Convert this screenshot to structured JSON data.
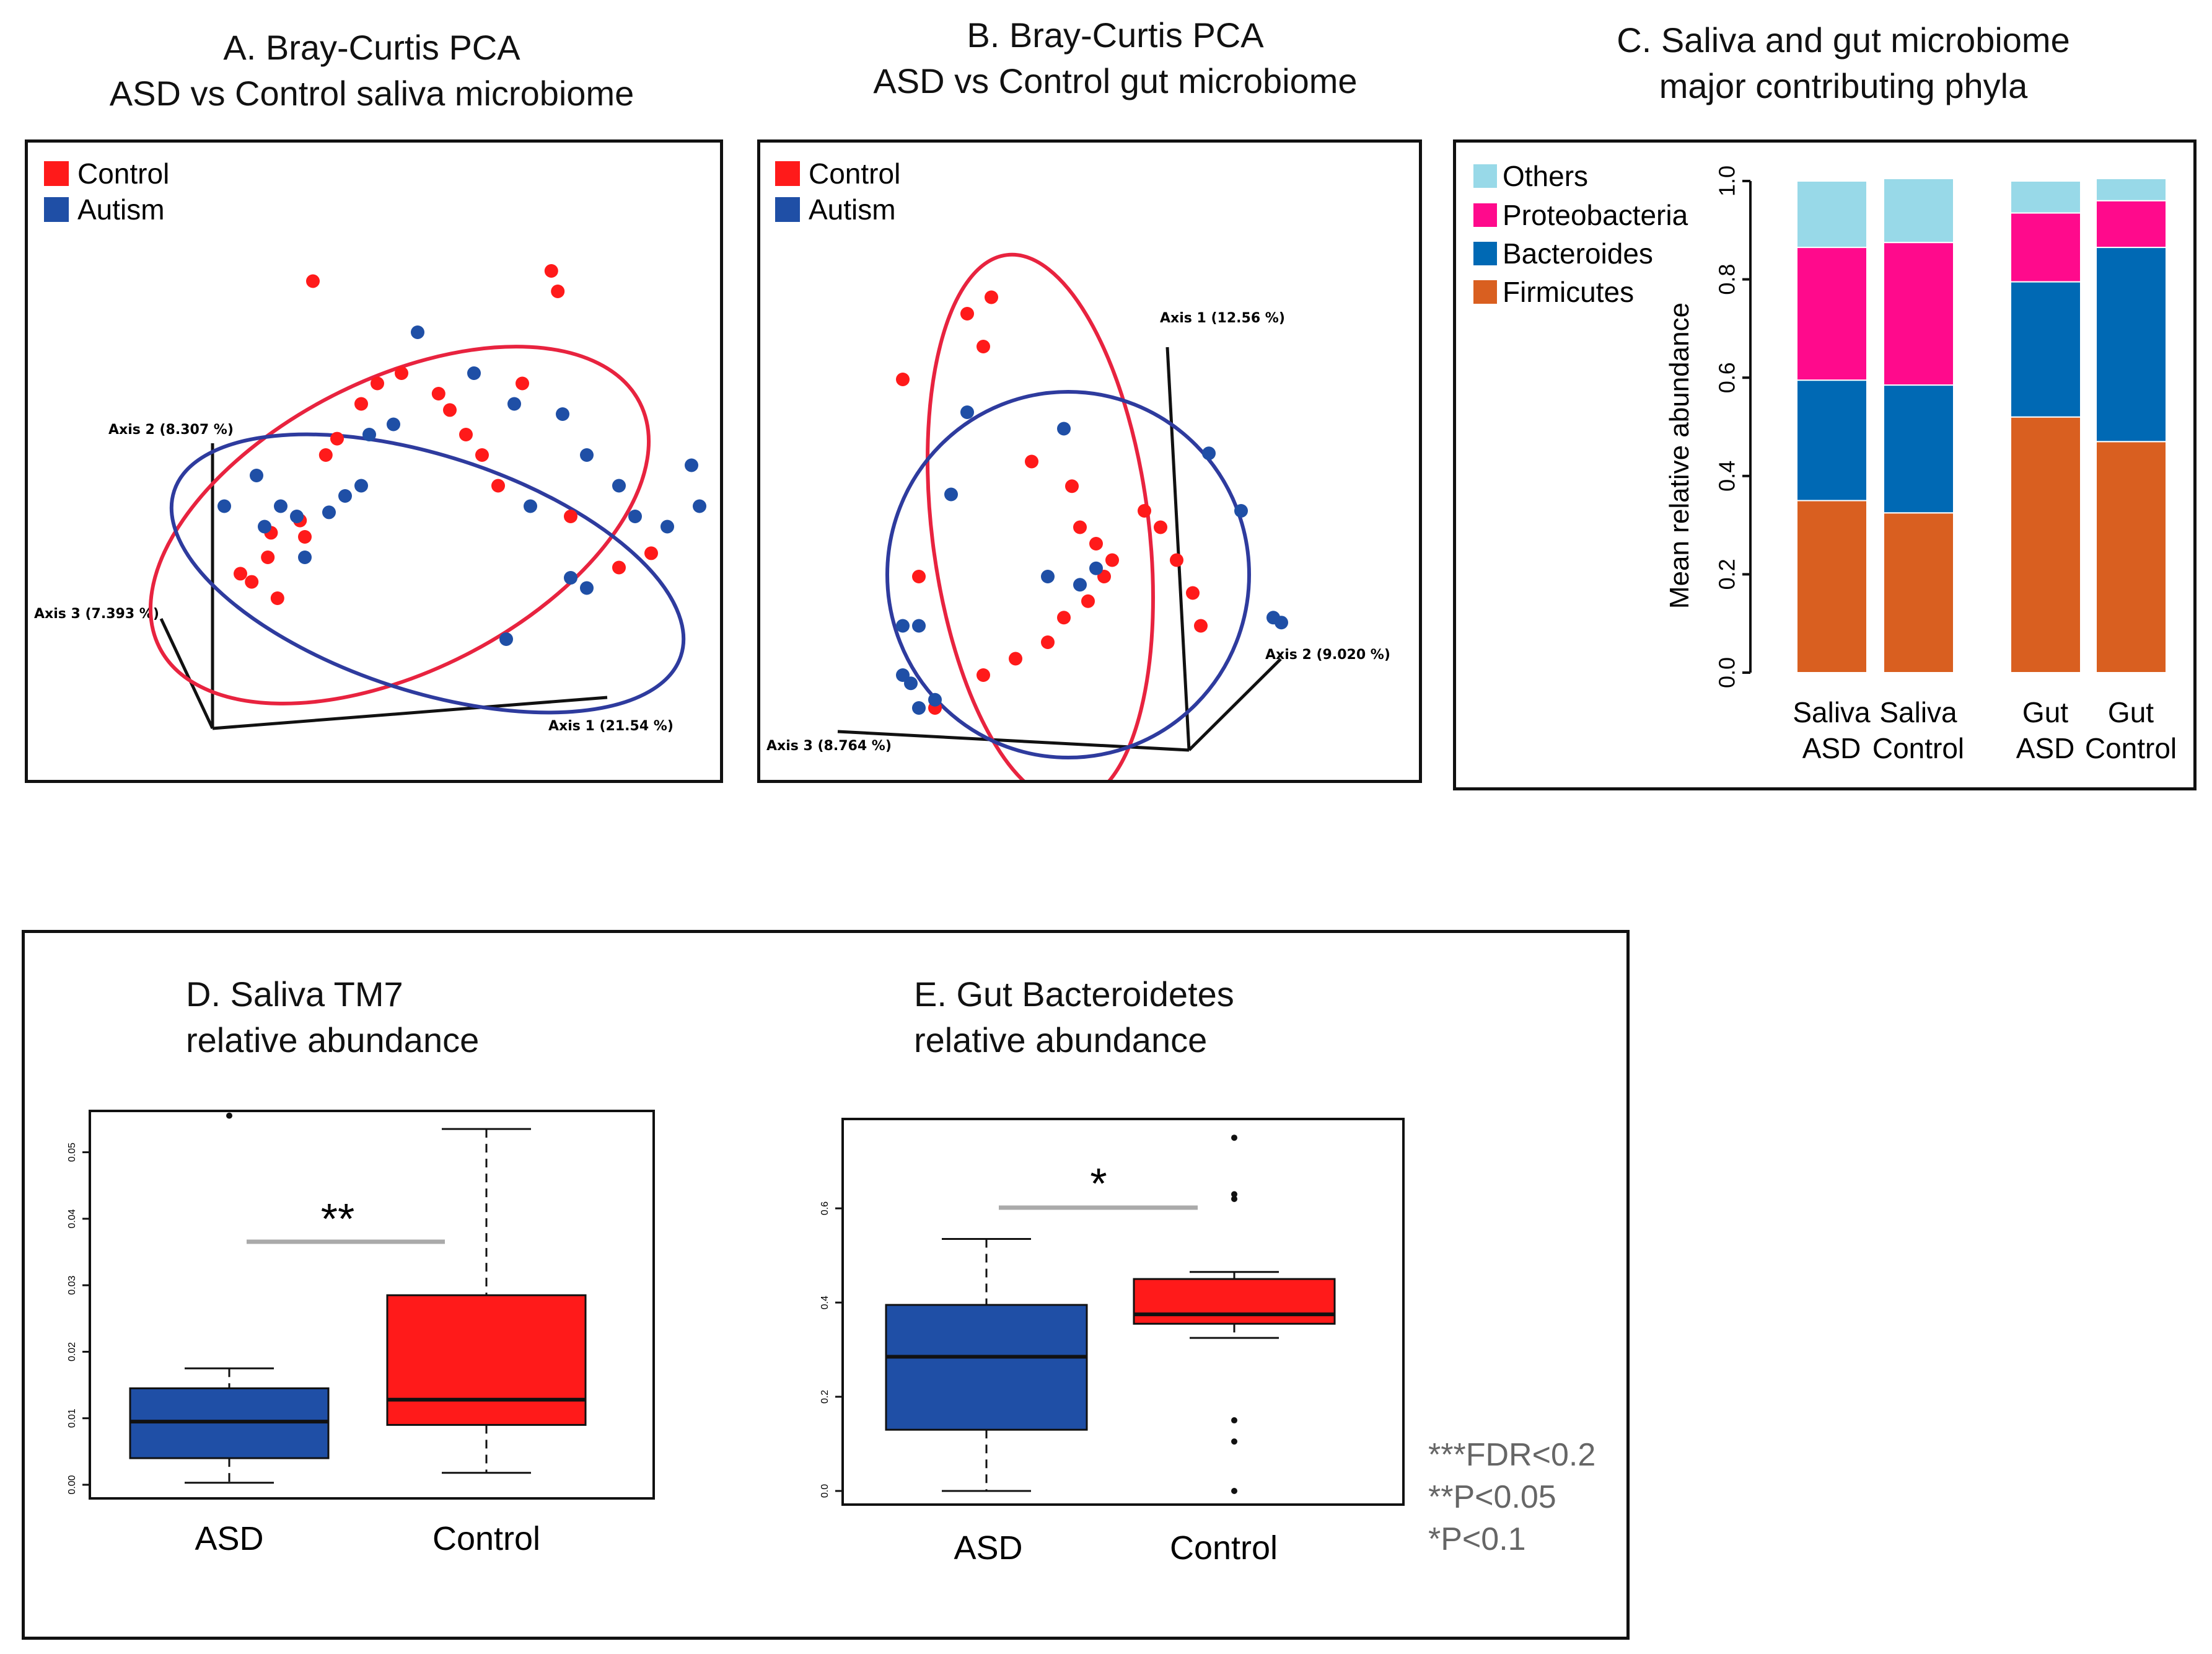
{
  "colors": {
    "control": "#ff1a1a",
    "autism": "#1f4fa6",
    "ellipse_control": "#e8233f",
    "ellipse_autism": "#2e3b9e",
    "others": "#98d9e8",
    "proteo": "#ff0a8c",
    "bacter": "#0069b4",
    "firmi": "#d95f20",
    "sigline": "#aaaaaa"
  },
  "panelA": {
    "title": [
      "A. Bray-Curtis PCA",
      "ASD vs Control saliva microbiome"
    ],
    "legend": [
      "Control",
      "Autism"
    ],
    "axes": [
      "Axis 2 (8.307 %)",
      "Axis 3 (7.393 %)",
      "Axis 1 (21.54 %)"
    ]
  },
  "panelB": {
    "title": [
      "B. Bray-Curtis PCA",
      "ASD vs Control gut microbiome"
    ],
    "legend": [
      "Control",
      "Autism"
    ],
    "axes": [
      "Axis 1 (12.56 %)",
      "Axis 2 (9.020 %)",
      "Axis 3 (8.764 %)"
    ]
  },
  "panelC": {
    "title": [
      "C. Saliva and gut microbiome",
      "major contributing phyla"
    ],
    "ylabel": "Mean relative abundance",
    "legend": [
      "Others",
      "Proteobacteria",
      "Bacteroides",
      "Firmicutes"
    ],
    "yticks": [
      "0.0",
      "0.2",
      "0.4",
      "0.6",
      "0.8",
      "1.0"
    ],
    "groups": [
      [
        "Saliva",
        "ASD"
      ],
      [
        "Saliva",
        "Control"
      ],
      [
        "Gut",
        "ASD"
      ],
      [
        "Gut",
        "Control"
      ]
    ]
  },
  "panelD": {
    "title": [
      "D. Saliva TM7",
      "relative abundance"
    ],
    "categories": [
      "ASD",
      "Control"
    ],
    "stars": "**",
    "yticks": [
      "0.00",
      "0.01",
      "0.02",
      "0.03",
      "0.04",
      "0.05"
    ]
  },
  "panelE": {
    "title": [
      "E. Gut Bacteroidetes",
      "relative abundance"
    ],
    "categories": [
      "ASD",
      "Control"
    ],
    "stars": "*",
    "yticks": [
      "0.0",
      "0.2",
      "0.4",
      "0.6"
    ]
  },
  "significance": [
    "***FDR<0.2",
    "**P<0.05",
    "*P<0.1"
  ],
  "chart_data": [
    {
      "type": "scatter",
      "title": "A. Bray-Curtis PCA ASD vs Control saliva microbiome",
      "series": [
        {
          "name": "Control",
          "points": [
            [
              0.55,
              0.62
            ],
            [
              0.62,
              0.58
            ],
            [
              0.72,
              0.7
            ],
            [
              0.74,
              0.82
            ],
            [
              0.92,
              0.88
            ],
            [
              0.95,
              0.8
            ],
            [
              1.08,
              1.2
            ],
            [
              1.15,
              1.28
            ],
            [
              1.3,
              1.45
            ],
            [
              1.4,
              1.55
            ],
            [
              1.55,
              1.6
            ],
            [
              1.78,
              1.5
            ],
            [
              1.85,
              1.42
            ],
            [
              1.95,
              1.3
            ],
            [
              2.05,
              1.2
            ],
            [
              2.15,
              1.05
            ],
            [
              2.3,
              1.55
            ],
            [
              2.48,
              2.1
            ],
            [
              2.52,
              2.0
            ],
            [
              2.6,
              0.9
            ],
            [
              2.9,
              0.65
            ],
            [
              3.1,
              0.72
            ],
            [
              1.0,
              2.05
            ],
            [
              0.78,
              0.5
            ]
          ],
          "note": "approximate positions in projected PCA space (arbitrary units)"
        },
        {
          "name": "Autism",
          "points": [
            [
              0.45,
              0.95
            ],
            [
              0.65,
              1.1
            ],
            [
              0.7,
              0.85
            ],
            [
              0.8,
              0.95
            ],
            [
              0.9,
              0.9
            ],
            [
              0.95,
              0.7
            ],
            [
              1.1,
              0.92
            ],
            [
              1.2,
              1.0
            ],
            [
              1.3,
              1.05
            ],
            [
              1.35,
              1.3
            ],
            [
              1.5,
              1.35
            ],
            [
              1.65,
              1.8
            ],
            [
              2.0,
              1.6
            ],
            [
              2.25,
              1.45
            ],
            [
              2.35,
              0.95
            ],
            [
              2.55,
              1.4
            ],
            [
              2.7,
              1.2
            ],
            [
              2.9,
              1.05
            ],
            [
              3.0,
              0.9
            ],
            [
              3.2,
              0.85
            ],
            [
              3.35,
              1.15
            ],
            [
              3.4,
              0.95
            ],
            [
              2.6,
              0.6
            ],
            [
              2.7,
              0.55
            ],
            [
              2.2,
              0.3
            ]
          ]
        }
      ]
    },
    {
      "type": "scatter",
      "title": "B. Bray-Curtis PCA ASD vs Control gut microbiome",
      "series": [
        {
          "name": "Control",
          "points": [
            [
              0.9,
              2.6
            ],
            [
              1.0,
              2.4
            ],
            [
              1.05,
              2.7
            ],
            [
              0.5,
              2.2
            ],
            [
              1.3,
              1.7
            ],
            [
              1.55,
              1.55
            ],
            [
              1.6,
              1.3
            ],
            [
              1.7,
              1.2
            ],
            [
              1.8,
              1.1
            ],
            [
              1.75,
              1.0
            ],
            [
              1.65,
              0.85
            ],
            [
              1.5,
              0.75
            ],
            [
              1.4,
              0.6
            ],
            [
              1.2,
              0.5
            ],
            [
              1.0,
              0.4
            ],
            [
              0.7,
              0.2
            ],
            [
              2.0,
              1.4
            ],
            [
              2.1,
              1.3
            ],
            [
              2.2,
              1.1
            ],
            [
              2.3,
              0.9
            ],
            [
              2.35,
              0.7
            ],
            [
              0.6,
              1.0
            ]
          ]
        },
        {
          "name": "Autism",
          "points": [
            [
              0.9,
              2.0
            ],
            [
              1.5,
              1.9
            ],
            [
              2.4,
              1.75
            ],
            [
              0.8,
              1.5
            ],
            [
              2.6,
              1.4
            ],
            [
              1.4,
              1.0
            ],
            [
              1.7,
              1.05
            ],
            [
              1.6,
              0.95
            ],
            [
              0.5,
              0.7
            ],
            [
              0.6,
              0.7
            ],
            [
              0.5,
              0.4
            ],
            [
              0.55,
              0.35
            ],
            [
              0.6,
              0.2
            ],
            [
              0.7,
              0.25
            ],
            [
              2.8,
              0.75
            ],
            [
              2.85,
              0.72
            ]
          ]
        }
      ]
    },
    {
      "type": "bar",
      "stacked": true,
      "title": "C. Saliva and gut microbiome major contributing phyla",
      "ylabel": "Mean relative abundance",
      "ylim": [
        0,
        1.0
      ],
      "categories": [
        "Saliva ASD",
        "Saliva Control",
        "Gut ASD",
        "Gut Control"
      ],
      "series": [
        {
          "name": "Firmicutes",
          "values": [
            0.35,
            0.325,
            0.52,
            0.47
          ]
        },
        {
          "name": "Bacteroides",
          "values": [
            0.245,
            0.26,
            0.275,
            0.395
          ]
        },
        {
          "name": "Proteobacteria",
          "values": [
            0.27,
            0.29,
            0.14,
            0.095
          ]
        },
        {
          "name": "Others",
          "values": [
            0.135,
            0.13,
            0.065,
            0.045
          ]
        }
      ]
    },
    {
      "type": "box",
      "title": "D. Saliva TM7 relative abundance",
      "ylim": [
        0,
        0.055
      ],
      "categories": [
        "ASD",
        "Control"
      ],
      "boxes": [
        {
          "name": "ASD",
          "whisker_low": 0.0003,
          "q1": 0.004,
          "median": 0.0095,
          "q3": 0.0145,
          "whisker_high": 0.0175,
          "outliers": [
            0.0555
          ]
        },
        {
          "name": "Control",
          "whisker_low": 0.0018,
          "q1": 0.009,
          "median": 0.0128,
          "q3": 0.0285,
          "whisker_high": 0.0535,
          "outliers": []
        }
      ]
    },
    {
      "type": "box",
      "title": "E. Gut Bacteroidetes relative abundance",
      "ylim": [
        0,
        0.77
      ],
      "categories": [
        "ASD",
        "Control"
      ],
      "boxes": [
        {
          "name": "ASD",
          "whisker_low": 0.0,
          "q1": 0.13,
          "median": 0.285,
          "q3": 0.395,
          "whisker_high": 0.535,
          "outliers": []
        },
        {
          "name": "Control",
          "whisker_low": 0.325,
          "q1": 0.355,
          "median": 0.375,
          "q3": 0.45,
          "whisker_high": 0.465,
          "outliers": [
            0.0,
            0.105,
            0.15,
            0.62,
            0.63,
            0.75
          ]
        }
      ]
    }
  ]
}
